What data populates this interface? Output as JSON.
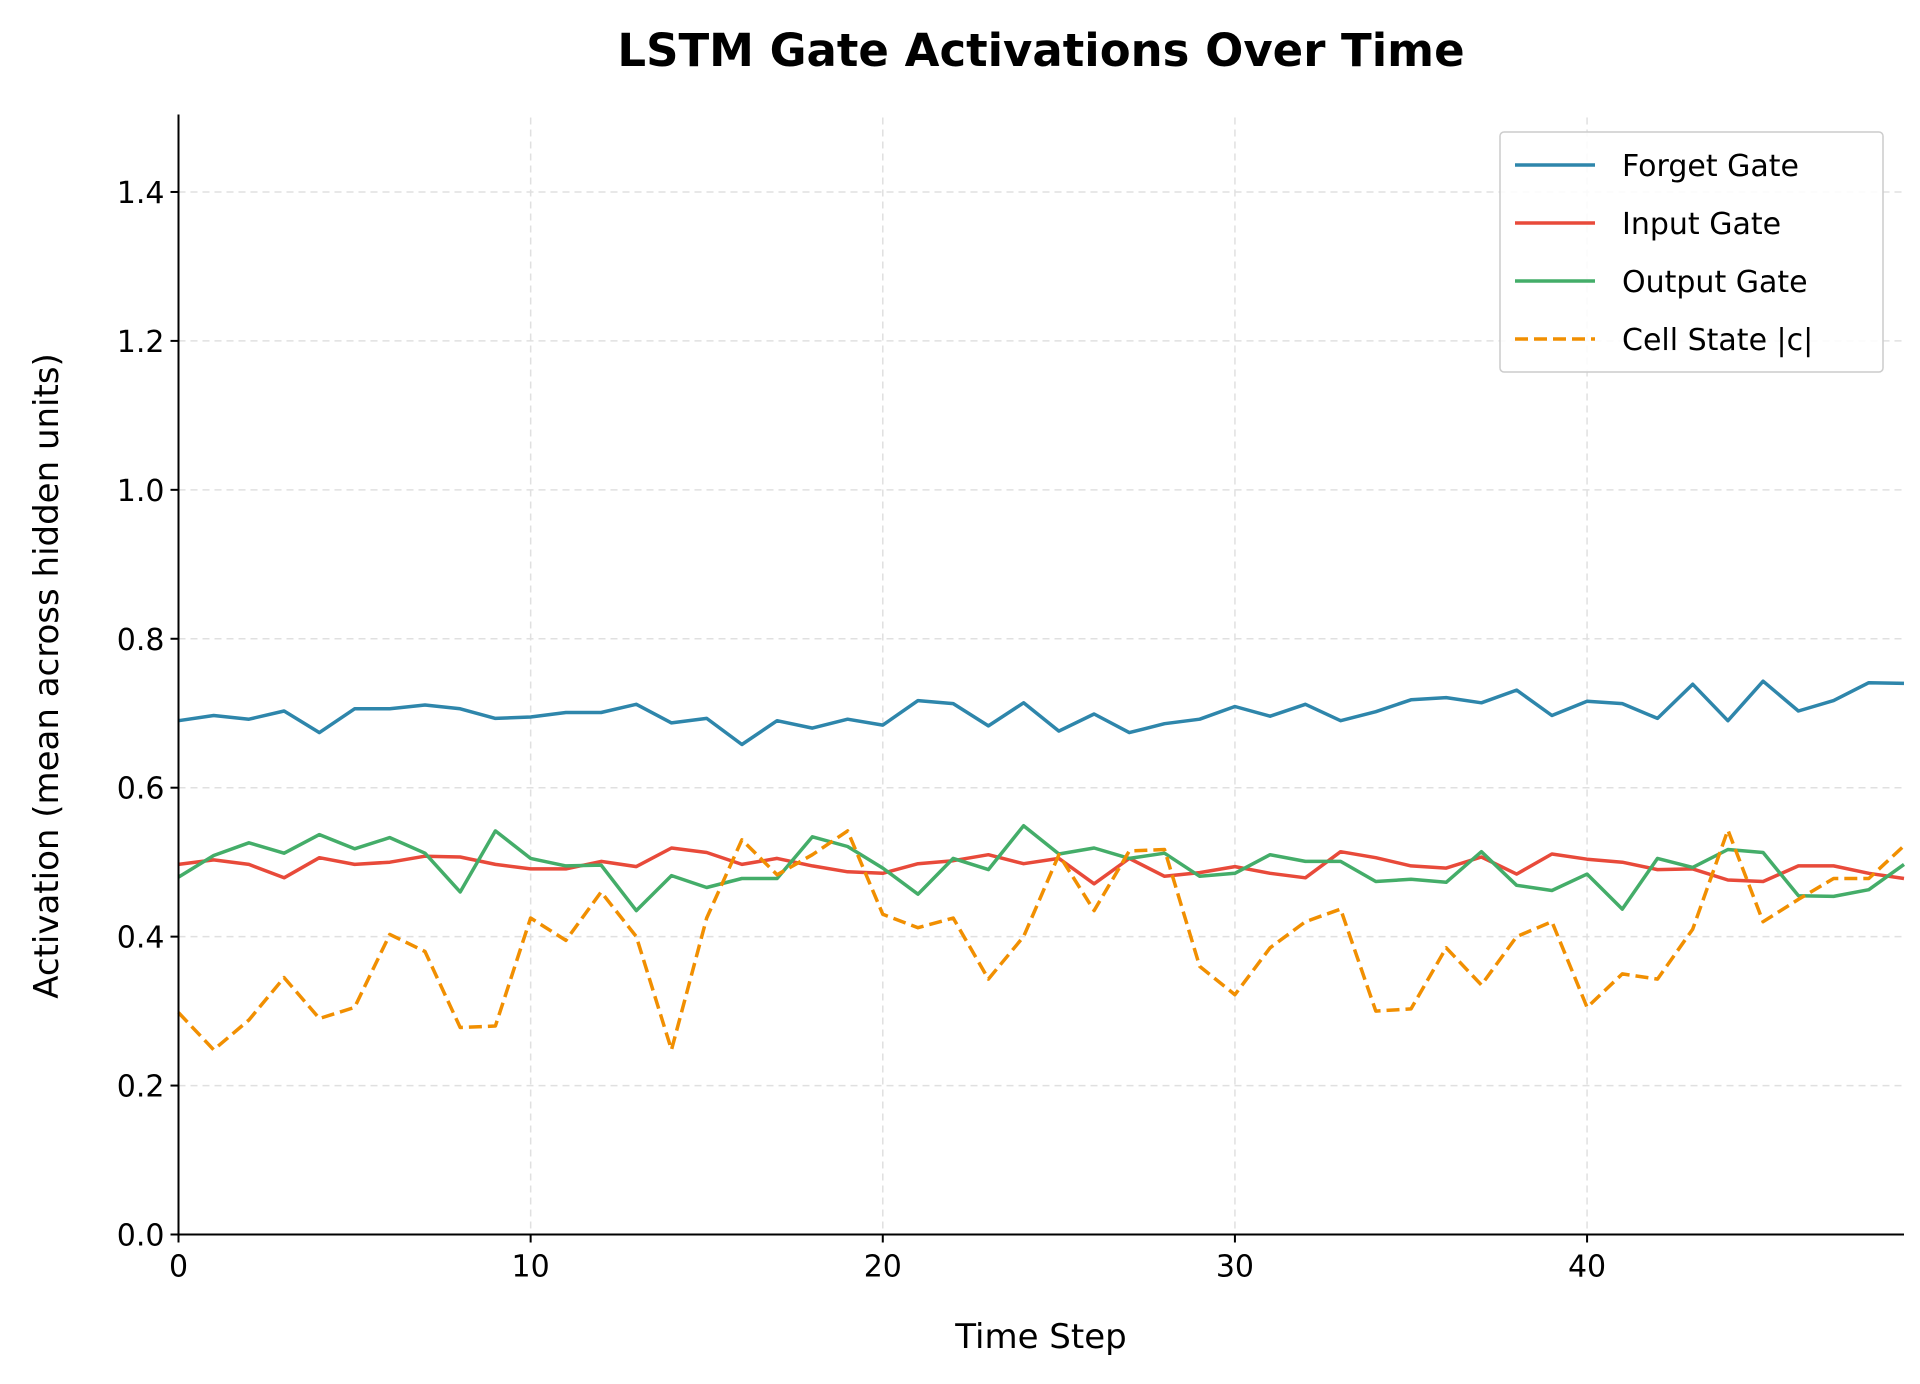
{
  "chart_data": {
    "type": "line",
    "title": "LSTM Gate Activations Over Time",
    "xlabel": "Time Step",
    "ylabel": "Activation (mean across hidden units)",
    "xlim": [
      0,
      49
    ],
    "ylim": [
      0,
      1.5
    ],
    "xticks": [
      0,
      10,
      20,
      30,
      40
    ],
    "xtick_labels": [
      "0",
      "10",
      "20",
      "30",
      "40"
    ],
    "yticks": [
      0,
      0.2,
      0.4,
      0.6,
      0.8,
      1.0,
      1.2,
      1.4
    ],
    "ytick_labels": [
      "0.0",
      "0.2",
      "0.4",
      "0.6",
      "0.8",
      "1.0",
      "1.2",
      "1.4"
    ],
    "grid": true,
    "legend_position": "top-right",
    "x": [
      0,
      1,
      2,
      3,
      4,
      5,
      6,
      7,
      8,
      9,
      10,
      11,
      12,
      13,
      14,
      15,
      16,
      17,
      18,
      19,
      20,
      21,
      22,
      23,
      24,
      25,
      26,
      27,
      28,
      29,
      30,
      31,
      32,
      33,
      34,
      35,
      36,
      37,
      38,
      39,
      40,
      41,
      42,
      43,
      44,
      45,
      46,
      47,
      48,
      49
    ],
    "series": [
      {
        "name": "Forget Gate",
        "color": "#2e86ab",
        "style": "solid",
        "values": [
          0.69,
          0.697,
          0.692,
          0.703,
          0.674,
          0.706,
          0.706,
          0.711,
          0.706,
          0.693,
          0.695,
          0.701,
          0.701,
          0.712,
          0.687,
          0.693,
          0.658,
          0.69,
          0.68,
          0.692,
          0.684,
          0.717,
          0.713,
          0.683,
          0.714,
          0.676,
          0.699,
          0.674,
          0.686,
          0.692,
          0.709,
          0.696,
          0.712,
          0.69,
          0.702,
          0.718,
          0.721,
          0.714,
          0.731,
          0.697,
          0.716,
          0.713,
          0.693,
          0.739,
          0.69,
          0.743,
          0.703,
          0.717,
          0.741,
          0.74
        ]
      },
      {
        "name": "Input Gate",
        "color": "#e84a3a",
        "style": "solid",
        "values": [
          0.497,
          0.503,
          0.497,
          0.479,
          0.506,
          0.497,
          0.5,
          0.508,
          0.507,
          0.497,
          0.491,
          0.491,
          0.501,
          0.494,
          0.519,
          0.513,
          0.497,
          0.505,
          0.495,
          0.487,
          0.485,
          0.498,
          0.502,
          0.51,
          0.498,
          0.505,
          0.471,
          0.505,
          0.481,
          0.486,
          0.494,
          0.485,
          0.479,
          0.514,
          0.506,
          0.495,
          0.492,
          0.507,
          0.484,
          0.511,
          0.504,
          0.5,
          0.49,
          0.491,
          0.476,
          0.474,
          0.495,
          0.495,
          0.485,
          0.478
        ]
      },
      {
        "name": "Output Gate",
        "color": "#44ad69",
        "style": "solid",
        "values": [
          0.48,
          0.509,
          0.526,
          0.512,
          0.537,
          0.518,
          0.533,
          0.512,
          0.46,
          0.542,
          0.505,
          0.495,
          0.496,
          0.435,
          0.482,
          0.466,
          0.478,
          0.478,
          0.534,
          0.521,
          0.492,
          0.457,
          0.505,
          0.49,
          0.549,
          0.511,
          0.519,
          0.505,
          0.512,
          0.481,
          0.485,
          0.51,
          0.501,
          0.501,
          0.474,
          0.477,
          0.473,
          0.514,
          0.469,
          0.462,
          0.484,
          0.437,
          0.505,
          0.493,
          0.517,
          0.513,
          0.455,
          0.454,
          0.463,
          0.497
        ]
      },
      {
        "name": "Cell State |c|",
        "color": "#f18f01",
        "style": "dashed",
        "values": [
          0.298,
          0.248,
          0.288,
          0.345,
          0.29,
          0.305,
          0.403,
          0.38,
          0.278,
          0.28,
          0.425,
          0.395,
          0.46,
          0.4,
          0.248,
          0.425,
          0.53,
          0.483,
          0.51,
          0.542,
          0.43,
          0.412,
          0.425,
          0.343,
          0.4,
          0.51,
          0.435,
          0.515,
          0.517,
          0.36,
          0.322,
          0.385,
          0.42,
          0.437,
          0.3,
          0.303,
          0.385,
          0.335,
          0.4,
          0.42,
          0.305,
          0.35,
          0.343,
          0.41,
          0.543,
          0.42,
          0.45,
          0.478,
          0.478,
          0.522
        ]
      }
    ]
  }
}
